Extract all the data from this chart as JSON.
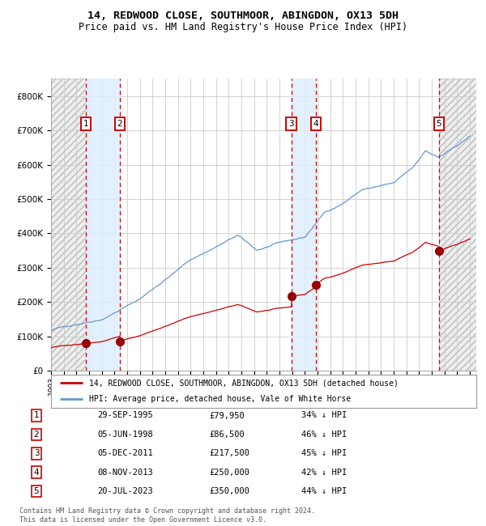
{
  "title": "14, REDWOOD CLOSE, SOUTHMOOR, ABINGDON, OX13 5DH",
  "subtitle": "Price paid vs. HM Land Registry's House Price Index (HPI)",
  "legend_label_red": "14, REDWOOD CLOSE, SOUTHMOOR, ABINGDON, OX13 5DH (detached house)",
  "legend_label_blue": "HPI: Average price, detached house, Vale of White Horse",
  "footer": "Contains HM Land Registry data © Crown copyright and database right 2024.\nThis data is licensed under the Open Government Licence v3.0.",
  "sales": [
    {
      "num": 1,
      "date": "29-SEP-1995",
      "price": 79950,
      "pct": "34% ↓ HPI",
      "year": 1995.75
    },
    {
      "num": 2,
      "date": "05-JUN-1998",
      "price": 86500,
      "pct": "46% ↓ HPI",
      "year": 1998.42
    },
    {
      "num": 3,
      "date": "05-DEC-2011",
      "price": 217500,
      "pct": "45% ↓ HPI",
      "year": 2011.92
    },
    {
      "num": 4,
      "date": "08-NOV-2013",
      "price": 250000,
      "pct": "42% ↓ HPI",
      "year": 2013.85
    },
    {
      "num": 5,
      "date": "20-JUL-2023",
      "price": 350000,
      "pct": "44% ↓ HPI",
      "year": 2023.55
    }
  ],
  "xmin": 1993.0,
  "xmax": 2026.5,
  "ymin": 0,
  "ymax": 850000,
  "yticks": [
    0,
    100000,
    200000,
    300000,
    400000,
    500000,
    600000,
    700000,
    800000
  ],
  "ytick_labels": [
    "£0",
    "£100K",
    "£200K",
    "£300K",
    "£400K",
    "£500K",
    "£600K",
    "£700K",
    "£800K"
  ],
  "background_color": "#ffffff",
  "plot_bg_color": "#ffffff",
  "grid_color": "#cccccc",
  "blue_shade_color": "#ddeeff",
  "red_dashed_color": "#cc0000",
  "blue_line_color": "#6699cc",
  "red_line_color": "#cc0000",
  "sale_dot_color": "#990000",
  "number_box_color": "#cc0000",
  "hatch_facecolor": "#eeeeee",
  "hatch_edgecolor": "#bbbbbb"
}
